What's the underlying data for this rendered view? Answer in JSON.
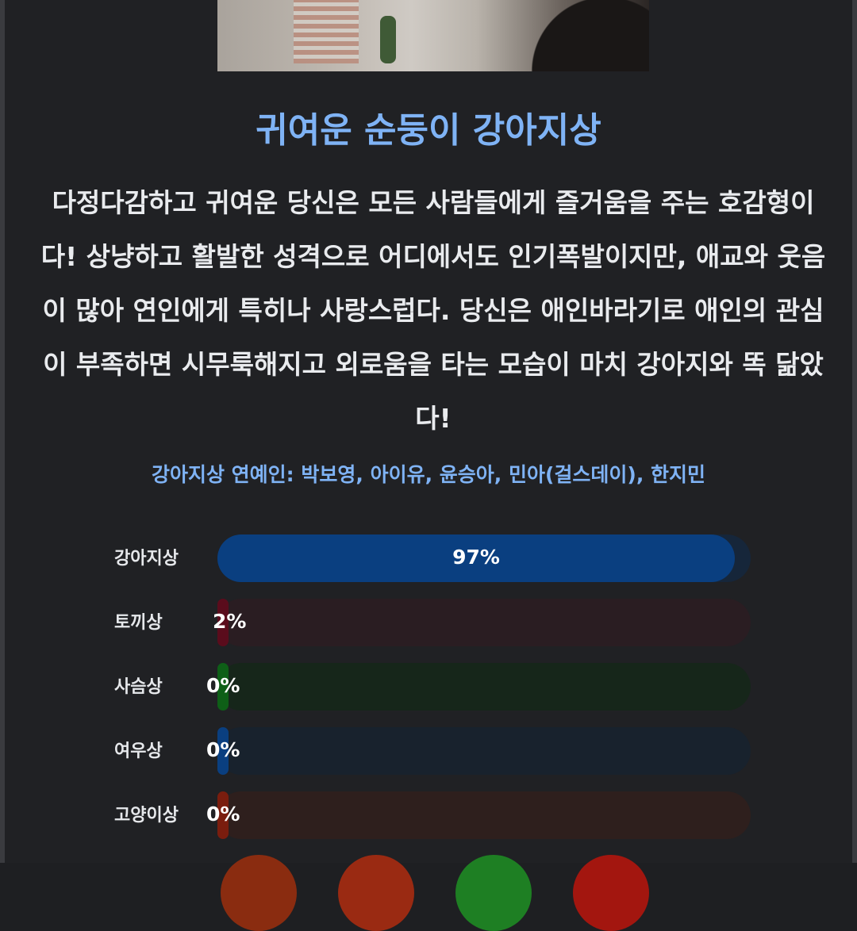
{
  "result": {
    "title": "귀여운 순둥이 강아지상",
    "description": "다정다감하고 귀여운 당신은 모든 사람들에게 즐거움을 주는 호감형이다! 상냥하고 활발한 성격으로 어디에서도 인기폭발이지만, 애교와 웃음이 많아 연인에게 특히나 사랑스럽다. 당신은 애인바라기로 애인의 관심이 부족하면 시무룩해지고 외로움을 타는 모습이 마치 강아지와 똑 닮았다!",
    "celebrities": "강아지상 연예인: 박보영, 아이유, 윤승아, 민아(걸스데이), 한지민"
  },
  "scores": [
    {
      "label": "강아지상",
      "value": 97,
      "text": "97%",
      "fill": "#0a3f80",
      "track": "#16263a"
    },
    {
      "label": "토끼상",
      "value": 2,
      "text": "2%",
      "fill": "#5a0c1c",
      "track": "#2a1d22"
    },
    {
      "label": "사슴상",
      "value": 0,
      "text": "0%",
      "fill": "#0e5f17",
      "track": "#16261a"
    },
    {
      "label": "여우상",
      "value": 0,
      "text": "0%",
      "fill": "#0a3f80",
      "track": "#18222d"
    },
    {
      "label": "고양이상",
      "value": 0,
      "text": "0%",
      "fill": "#7a1d0e",
      "track": "#2e1f1d"
    }
  ],
  "colors": {
    "accent": "#7fb3f5",
    "background": "#202124"
  }
}
